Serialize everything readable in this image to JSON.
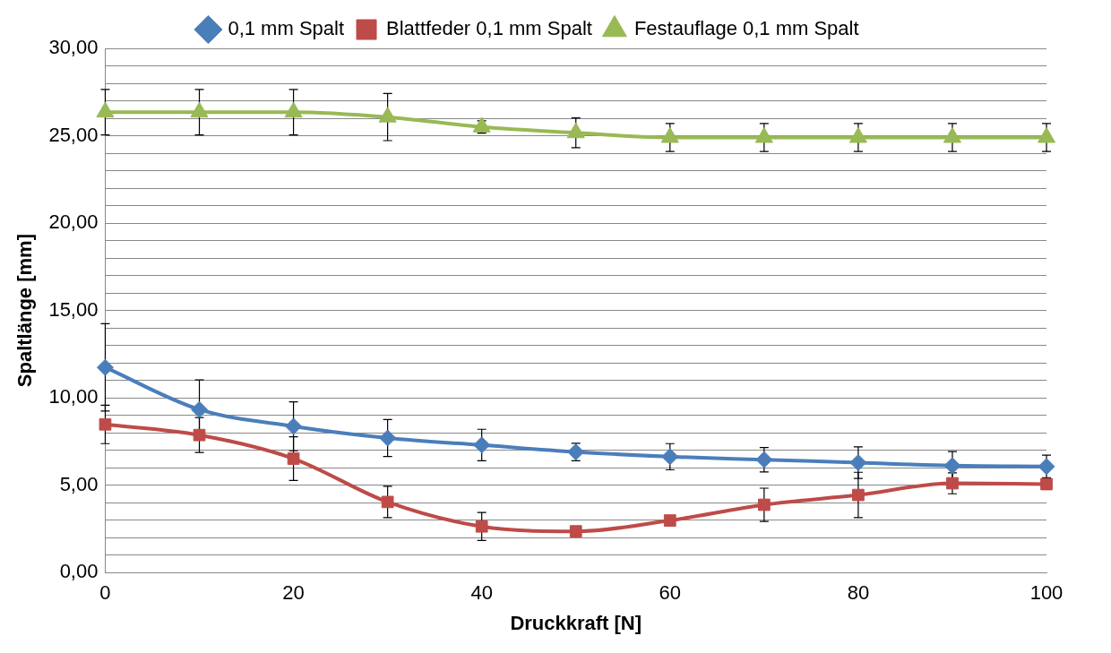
{
  "chart_data": {
    "type": "line",
    "xlabel": "Druckkraft [N]",
    "ylabel": "Spaltlänge [mm]",
    "x": [
      0,
      10,
      20,
      30,
      40,
      50,
      60,
      70,
      80,
      90,
      100
    ],
    "xlim": [
      0,
      100
    ],
    "xticks": [
      0,
      20,
      40,
      60,
      80,
      100
    ],
    "ylim": [
      0,
      30
    ],
    "yticks": [
      {
        "value": 0,
        "label": "0,00"
      },
      {
        "value": 1,
        "label": null
      },
      {
        "value": 2,
        "label": null
      },
      {
        "value": 3,
        "label": null
      },
      {
        "value": 4,
        "label": null
      },
      {
        "value": 5,
        "label": "5,00"
      },
      {
        "value": 6,
        "label": null
      },
      {
        "value": 7,
        "label": null
      },
      {
        "value": 8,
        "label": null
      },
      {
        "value": 9,
        "label": null
      },
      {
        "value": 10,
        "label": "10,00"
      },
      {
        "value": 11,
        "label": null
      },
      {
        "value": 12,
        "label": null
      },
      {
        "value": 13,
        "label": null
      },
      {
        "value": 14,
        "label": null
      },
      {
        "value": 15,
        "label": "15,00"
      },
      {
        "value": 16,
        "label": null
      },
      {
        "value": 17,
        "label": null
      },
      {
        "value": 18,
        "label": null
      },
      {
        "value": 19,
        "label": null
      },
      {
        "value": 20,
        "label": "20,00"
      },
      {
        "value": 21,
        "label": null
      },
      {
        "value": 22,
        "label": null
      },
      {
        "value": 23,
        "label": null
      },
      {
        "value": 24,
        "label": null
      },
      {
        "value": 25,
        "label": "25,00"
      },
      {
        "value": 26,
        "label": null
      },
      {
        "value": 27,
        "label": null
      },
      {
        "value": 28,
        "label": null
      },
      {
        "value": 29,
        "label": null
      },
      {
        "value": 30,
        "label": "30,00"
      }
    ],
    "grid": "y",
    "legend": "top",
    "series": [
      {
        "name": "0,1 mm Spalt",
        "color": "#4a7ebb",
        "marker": "diamond",
        "values": [
          11.74,
          9.33,
          8.37,
          7.7,
          7.3,
          6.9,
          6.63,
          6.46,
          6.29,
          6.12,
          6.07
        ],
        "errors": [
          2.5,
          1.7,
          1.4,
          1.06,
          0.9,
          0.5,
          0.75,
          0.7,
          0.9,
          0.8,
          0.65
        ]
      },
      {
        "name": "Blattfeder 0,1 mm Spalt",
        "color": "#be4b48",
        "marker": "square",
        "values": [
          8.48,
          7.87,
          6.52,
          4.04,
          2.64,
          2.36,
          2.98,
          3.88,
          4.44,
          5.11,
          5.06
        ],
        "errors": [
          1.1,
          1.0,
          1.25,
          0.9,
          0.8,
          null,
          null,
          0.95,
          1.3,
          0.6,
          0.3
        ]
      },
      {
        "name": "Festauflage 0,1 mm Spalt",
        "color": "#98b954",
        "marker": "triangle",
        "values": [
          26.35,
          26.35,
          26.35,
          26.07,
          25.5,
          25.17,
          24.9,
          24.9,
          24.9,
          24.9,
          24.9
        ],
        "errors": [
          1.3,
          1.3,
          1.3,
          1.35,
          0.35,
          0.85,
          0.8,
          0.8,
          0.8,
          0.8,
          0.8
        ]
      }
    ]
  }
}
